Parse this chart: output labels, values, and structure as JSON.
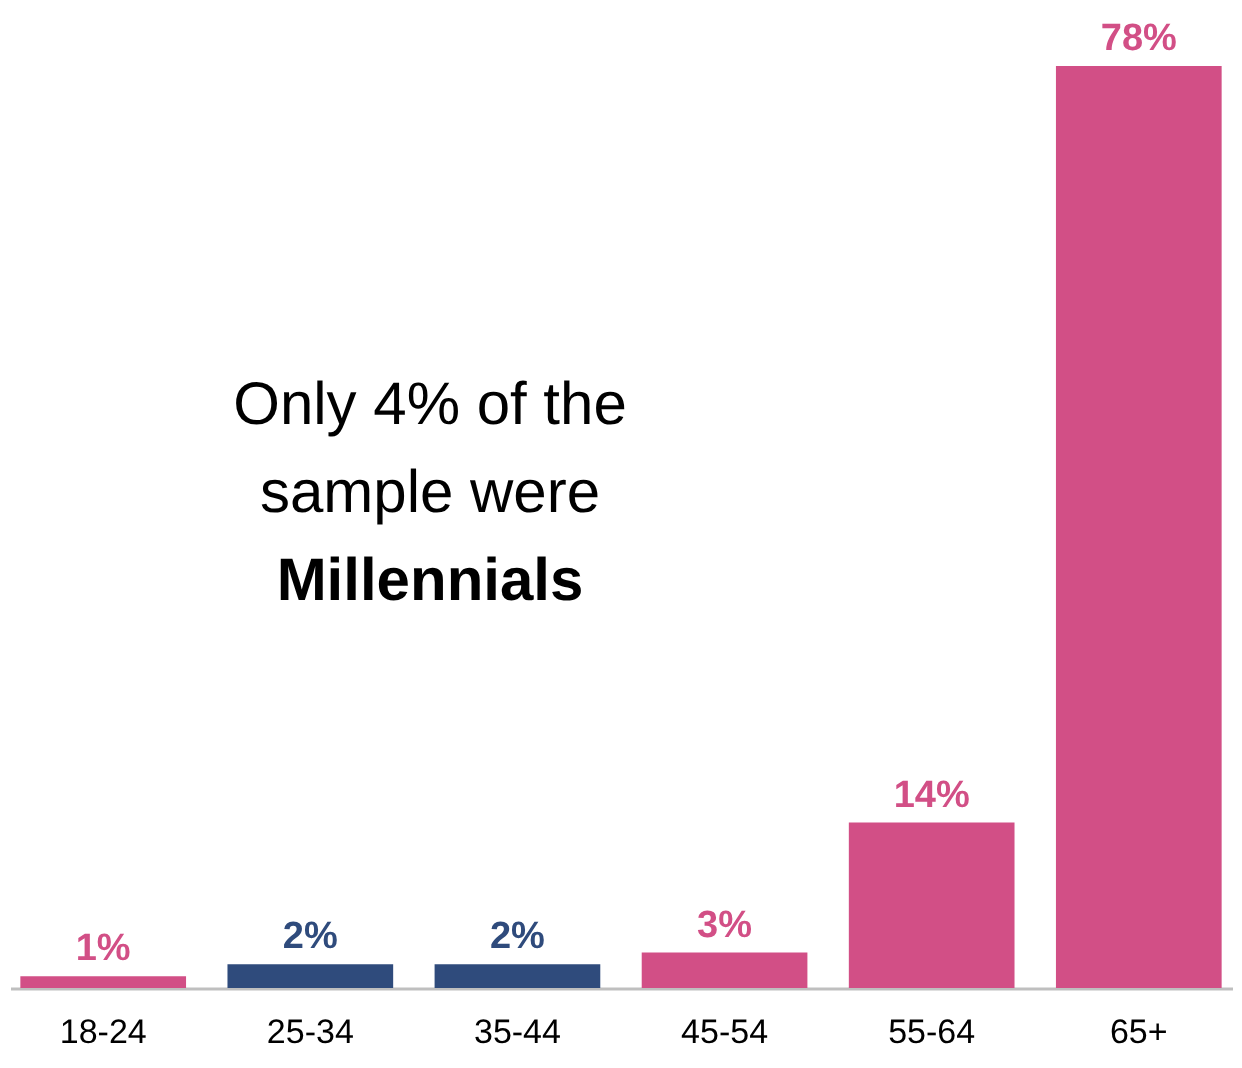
{
  "chart_data": {
    "type": "bar",
    "categories": [
      "18-24",
      "25-34",
      "35-44",
      "45-54",
      "55-64",
      "65+"
    ],
    "values": [
      1,
      2,
      2,
      3,
      14,
      78
    ],
    "colors": [
      "#d24f86",
      "#2f4b7c",
      "#2f4b7c",
      "#d24f86",
      "#d24f86",
      "#d24f86"
    ],
    "value_labels": [
      "1%",
      "2%",
      "2%",
      "3%",
      "14%",
      "78%"
    ],
    "annotations": [
      "Only 4% of the",
      "sample were",
      "Millennials"
    ],
    "grid": false,
    "tick_labels": "x"
  }
}
